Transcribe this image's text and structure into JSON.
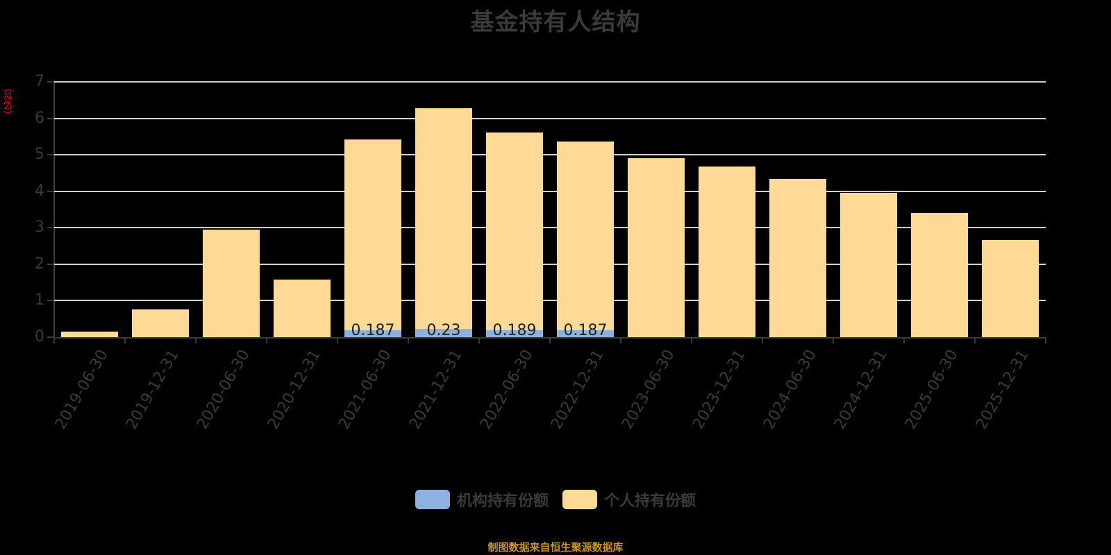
{
  "title": "基金持有人结构",
  "y_unit": "（亿份）",
  "source": "制图数据来自恒生聚源数据库",
  "legend": [
    {
      "label": "机构持有份额",
      "color": "#8eb2e0"
    },
    {
      "label": "个人持有份额",
      "color": "#ffd996"
    }
  ],
  "y_ticks": [
    "0",
    "1",
    "2",
    "3",
    "4",
    "5",
    "6",
    "7"
  ],
  "chart_data": {
    "type": "bar",
    "stacked": true,
    "title": "基金持有人结构",
    "xlabel": "",
    "ylabel": "（亿份）",
    "ylim": [
      0,
      7
    ],
    "grid": true,
    "legend_position": "bottom",
    "categories": [
      "2019-06-30",
      "2019-12-31",
      "2020-06-30",
      "2020-12-31",
      "2021-06-30",
      "2021-12-31",
      "2022-06-30",
      "2022-12-31",
      "2023-06-30",
      "2023-12-31",
      "2024-06-30",
      "2024-12-31",
      "2025-06-30",
      "2025-12-31"
    ],
    "series": [
      {
        "name": "机构持有份额",
        "color": "#8eb2e0",
        "values": [
          0,
          0,
          0,
          0,
          0.187,
          0.23,
          0.189,
          0.187,
          0,
          0,
          0,
          0,
          0,
          0
        ]
      },
      {
        "name": "个人持有份额",
        "color": "#ffd996",
        "values": [
          0.15,
          0.76,
          2.95,
          1.58,
          5.23,
          6.04,
          5.42,
          5.18,
          4.91,
          4.67,
          4.34,
          3.96,
          3.41,
          2.66
        ]
      }
    ],
    "data_labels": [
      "",
      "",
      "",
      "",
      "0.187",
      "0.23",
      "0.189",
      "0.187",
      "",
      "",
      "",
      "",
      "",
      ""
    ]
  }
}
